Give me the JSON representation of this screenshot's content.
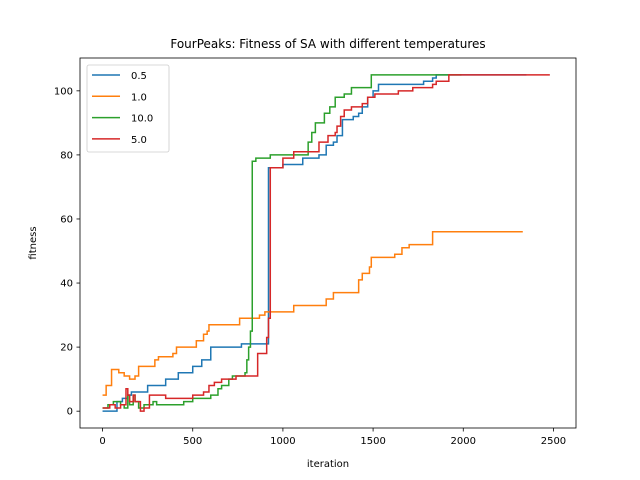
{
  "chart_data": {
    "type": "line",
    "title": "FourPeaks: Fitness of SA with different temperatures",
    "xlabel": "iteration",
    "ylabel": "fitness",
    "xlim": [
      -125,
      2625
    ],
    "ylim": [
      -5.25,
      110.25
    ],
    "xticks": [
      0,
      500,
      1000,
      1500,
      2000,
      2500
    ],
    "yticks": [
      0,
      20,
      40,
      60,
      80,
      100
    ],
    "grid": false,
    "legend": "upper-left",
    "series": [
      {
        "name": "0.5",
        "color": "#1f77b4",
        "steps": [
          [
            0,
            0
          ],
          [
            80,
            0
          ],
          [
            80,
            3
          ],
          [
            110,
            3
          ],
          [
            110,
            4
          ],
          [
            140,
            4
          ],
          [
            140,
            5
          ],
          [
            160,
            5
          ],
          [
            160,
            6
          ],
          [
            250,
            6
          ],
          [
            250,
            8
          ],
          [
            350,
            8
          ],
          [
            350,
            10
          ],
          [
            420,
            10
          ],
          [
            420,
            12
          ],
          [
            500,
            12
          ],
          [
            500,
            14
          ],
          [
            550,
            14
          ],
          [
            550,
            16
          ],
          [
            600,
            16
          ],
          [
            600,
            20
          ],
          [
            770,
            20
          ],
          [
            770,
            21
          ],
          [
            920,
            21
          ],
          [
            920,
            76
          ],
          [
            1000,
            76
          ],
          [
            1000,
            77
          ],
          [
            1110,
            77
          ],
          [
            1110,
            79
          ],
          [
            1200,
            79
          ],
          [
            1200,
            80
          ],
          [
            1240,
            80
          ],
          [
            1240,
            83
          ],
          [
            1280,
            83
          ],
          [
            1280,
            84
          ],
          [
            1300,
            84
          ],
          [
            1300,
            86
          ],
          [
            1330,
            86
          ],
          [
            1330,
            91
          ],
          [
            1390,
            91
          ],
          [
            1390,
            92
          ],
          [
            1420,
            92
          ],
          [
            1420,
            93
          ],
          [
            1440,
            93
          ],
          [
            1440,
            95
          ],
          [
            1470,
            95
          ],
          [
            1470,
            98
          ],
          [
            1500,
            98
          ],
          [
            1500,
            100
          ],
          [
            1530,
            100
          ],
          [
            1530,
            102
          ],
          [
            1780,
            102
          ],
          [
            1780,
            103
          ],
          [
            1830,
            103
          ],
          [
            1830,
            104
          ],
          [
            1850,
            104
          ],
          [
            1850,
            105
          ],
          [
            2350,
            105
          ]
        ]
      },
      {
        "name": "1.0",
        "color": "#ff7f0e",
        "steps": [
          [
            0,
            5
          ],
          [
            20,
            5
          ],
          [
            20,
            8
          ],
          [
            50,
            8
          ],
          [
            50,
            13
          ],
          [
            90,
            13
          ],
          [
            90,
            12
          ],
          [
            120,
            12
          ],
          [
            120,
            11
          ],
          [
            150,
            11
          ],
          [
            150,
            10
          ],
          [
            180,
            10
          ],
          [
            180,
            11
          ],
          [
            200,
            11
          ],
          [
            200,
            14
          ],
          [
            290,
            14
          ],
          [
            290,
            16
          ],
          [
            310,
            16
          ],
          [
            310,
            17
          ],
          [
            390,
            17
          ],
          [
            390,
            18
          ],
          [
            410,
            18
          ],
          [
            410,
            20
          ],
          [
            520,
            20
          ],
          [
            520,
            22
          ],
          [
            560,
            22
          ],
          [
            560,
            24
          ],
          [
            580,
            24
          ],
          [
            580,
            25
          ],
          [
            590,
            25
          ],
          [
            590,
            27
          ],
          [
            760,
            27
          ],
          [
            760,
            29
          ],
          [
            870,
            29
          ],
          [
            870,
            30
          ],
          [
            900,
            30
          ],
          [
            900,
            31
          ],
          [
            1060,
            31
          ],
          [
            1060,
            33
          ],
          [
            1240,
            33
          ],
          [
            1240,
            35
          ],
          [
            1280,
            35
          ],
          [
            1280,
            37
          ],
          [
            1420,
            37
          ],
          [
            1420,
            41
          ],
          [
            1440,
            41
          ],
          [
            1440,
            43
          ],
          [
            1480,
            43
          ],
          [
            1480,
            45
          ],
          [
            1490,
            45
          ],
          [
            1490,
            48
          ],
          [
            1620,
            48
          ],
          [
            1620,
            49
          ],
          [
            1660,
            49
          ],
          [
            1660,
            51
          ],
          [
            1700,
            51
          ],
          [
            1700,
            52
          ],
          [
            1830,
            52
          ],
          [
            1830,
            56
          ],
          [
            2330,
            56
          ]
        ]
      },
      {
        "name": "10.0",
        "color": "#2ca02c",
        "steps": [
          [
            0,
            1
          ],
          [
            30,
            1
          ],
          [
            30,
            2
          ],
          [
            60,
            2
          ],
          [
            60,
            3
          ],
          [
            100,
            3
          ],
          [
            100,
            2
          ],
          [
            120,
            2
          ],
          [
            120,
            1
          ],
          [
            140,
            1
          ],
          [
            140,
            5
          ],
          [
            150,
            5
          ],
          [
            150,
            2
          ],
          [
            170,
            2
          ],
          [
            170,
            5
          ],
          [
            180,
            5
          ],
          [
            180,
            3
          ],
          [
            200,
            3
          ],
          [
            200,
            1
          ],
          [
            230,
            1
          ],
          [
            230,
            2
          ],
          [
            280,
            2
          ],
          [
            280,
            3
          ],
          [
            300,
            3
          ],
          [
            300,
            2
          ],
          [
            450,
            2
          ],
          [
            450,
            3
          ],
          [
            500,
            3
          ],
          [
            500,
            4
          ],
          [
            600,
            4
          ],
          [
            600,
            5
          ],
          [
            640,
            5
          ],
          [
            640,
            7
          ],
          [
            660,
            7
          ],
          [
            660,
            8
          ],
          [
            700,
            8
          ],
          [
            700,
            10
          ],
          [
            720,
            10
          ],
          [
            720,
            11
          ],
          [
            790,
            11
          ],
          [
            790,
            12
          ],
          [
            800,
            12
          ],
          [
            800,
            16
          ],
          [
            810,
            16
          ],
          [
            810,
            20
          ],
          [
            820,
            20
          ],
          [
            820,
            25
          ],
          [
            830,
            25
          ],
          [
            830,
            78
          ],
          [
            850,
            78
          ],
          [
            850,
            79
          ],
          [
            930,
            79
          ],
          [
            930,
            80
          ],
          [
            1000,
            80
          ],
          [
            1000,
            80
          ],
          [
            1140,
            80
          ],
          [
            1140,
            84
          ],
          [
            1160,
            84
          ],
          [
            1160,
            87
          ],
          [
            1180,
            87
          ],
          [
            1180,
            90
          ],
          [
            1230,
            90
          ],
          [
            1230,
            93
          ],
          [
            1260,
            93
          ],
          [
            1260,
            95
          ],
          [
            1290,
            95
          ],
          [
            1290,
            98
          ],
          [
            1340,
            98
          ],
          [
            1340,
            99
          ],
          [
            1380,
            99
          ],
          [
            1380,
            101
          ],
          [
            1490,
            101
          ],
          [
            1490,
            105
          ],
          [
            1990,
            105
          ]
        ]
      },
      {
        "name": "5.0",
        "color": "#d62728",
        "steps": [
          [
            0,
            1
          ],
          [
            40,
            1
          ],
          [
            40,
            2
          ],
          [
            70,
            2
          ],
          [
            70,
            1
          ],
          [
            100,
            1
          ],
          [
            100,
            2
          ],
          [
            130,
            2
          ],
          [
            130,
            7
          ],
          [
            140,
            7
          ],
          [
            140,
            5
          ],
          [
            150,
            5
          ],
          [
            150,
            3
          ],
          [
            170,
            3
          ],
          [
            170,
            5
          ],
          [
            180,
            5
          ],
          [
            180,
            3
          ],
          [
            210,
            3
          ],
          [
            210,
            0
          ],
          [
            230,
            0
          ],
          [
            230,
            1
          ],
          [
            260,
            1
          ],
          [
            260,
            5
          ],
          [
            350,
            5
          ],
          [
            350,
            4
          ],
          [
            500,
            4
          ],
          [
            500,
            5
          ],
          [
            560,
            5
          ],
          [
            560,
            6
          ],
          [
            590,
            6
          ],
          [
            590,
            8
          ],
          [
            620,
            8
          ],
          [
            620,
            9
          ],
          [
            660,
            9
          ],
          [
            660,
            10
          ],
          [
            740,
            10
          ],
          [
            740,
            11
          ],
          [
            860,
            11
          ],
          [
            860,
            18
          ],
          [
            910,
            18
          ],
          [
            910,
            23
          ],
          [
            920,
            23
          ],
          [
            920,
            29
          ],
          [
            930,
            29
          ],
          [
            930,
            76
          ],
          [
            1000,
            76
          ],
          [
            1000,
            79
          ],
          [
            1060,
            79
          ],
          [
            1060,
            81
          ],
          [
            1200,
            81
          ],
          [
            1200,
            84
          ],
          [
            1250,
            84
          ],
          [
            1250,
            86
          ],
          [
            1290,
            86
          ],
          [
            1290,
            87
          ],
          [
            1300,
            87
          ],
          [
            1300,
            89
          ],
          [
            1320,
            89
          ],
          [
            1320,
            92
          ],
          [
            1340,
            92
          ],
          [
            1340,
            94
          ],
          [
            1380,
            94
          ],
          [
            1380,
            95
          ],
          [
            1440,
            95
          ],
          [
            1440,
            96
          ],
          [
            1470,
            96
          ],
          [
            1470,
            98
          ],
          [
            1510,
            98
          ],
          [
            1510,
            99
          ],
          [
            1640,
            99
          ],
          [
            1640,
            100
          ],
          [
            1720,
            100
          ],
          [
            1720,
            101
          ],
          [
            1830,
            101
          ],
          [
            1830,
            102
          ],
          [
            1850,
            102
          ],
          [
            1850,
            103
          ],
          [
            1920,
            103
          ],
          [
            1920,
            105
          ],
          [
            2480,
            105
          ]
        ]
      }
    ]
  }
}
